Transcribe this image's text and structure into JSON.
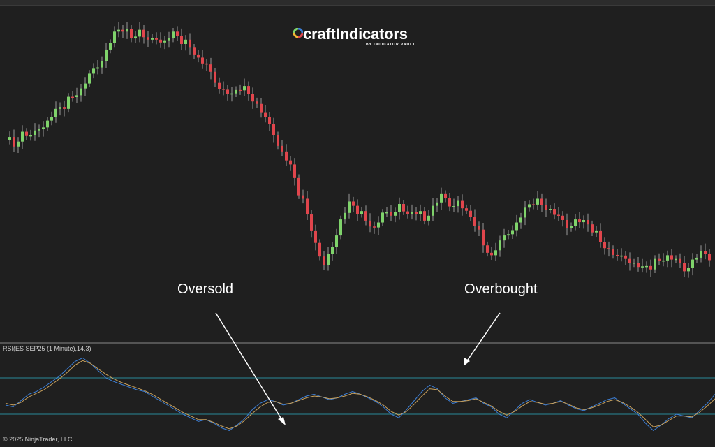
{
  "brand": {
    "name": "craftIndicators",
    "tagline": "BY INDICATOR VAULT"
  },
  "annotations": {
    "oversold": "Oversold",
    "overbought": "Overbought"
  },
  "rsi_panel": {
    "label": "RSI(ES SEP25 (1 Minute),14,3)"
  },
  "footer": {
    "copyright": "© 2025 NinjaTrader, LLC"
  },
  "colors": {
    "background": "#1f1f1f",
    "bull_candle": "#7fd36b",
    "bear_candle": "#e0454c",
    "wick": "#9a9a9a",
    "rsi_line": "#3d7fd6",
    "rsi_signal": "#c9a15c",
    "level_line": "#2a8a9a",
    "annotation": "#ffffff"
  },
  "chart_data": [
    {
      "type": "candlestick",
      "close": [
        0.65,
        0.62,
        0.66,
        0.64,
        0.68,
        0.7,
        0.73,
        0.75,
        0.78,
        0.8,
        0.84,
        0.88,
        0.93,
        0.98,
        1.0,
        0.97,
        0.99,
        0.95,
        0.97,
        0.96,
        0.98,
        0.96,
        0.94,
        0.9,
        0.87,
        0.83,
        0.8,
        0.78,
        0.81,
        0.79,
        0.75,
        0.7,
        0.66,
        0.6,
        0.55,
        0.47,
        0.4,
        0.3,
        0.22,
        0.3,
        0.38,
        0.43,
        0.41,
        0.38,
        0.35,
        0.39,
        0.4,
        0.43,
        0.39,
        0.41,
        0.38,
        0.42,
        0.45,
        0.43,
        0.44,
        0.4,
        0.37,
        0.3,
        0.26,
        0.3,
        0.34,
        0.37,
        0.41,
        0.44,
        0.43,
        0.41,
        0.38,
        0.36,
        0.38,
        0.37,
        0.35,
        0.31,
        0.28,
        0.25,
        0.26,
        0.24,
        0.22,
        0.23,
        0.25,
        0.26,
        0.24,
        0.22,
        0.25,
        0.27,
        0.26,
        0.25,
        0.2,
        0.14,
        0.1,
        0.12,
        0.14,
        0.16,
        0.19
      ],
      "min_price": 0.05,
      "max_price": 1.0
    },
    {
      "type": "line",
      "title": "RSI(ES SEP25 (1 Minute),14,3)",
      "series": [
        {
          "values": [
            40,
            38,
            45,
            52,
            55,
            60,
            66,
            72,
            80,
            88,
            92,
            86,
            78,
            70,
            66,
            63,
            60,
            57,
            55,
            50,
            45,
            40,
            35,
            30,
            26,
            22,
            24,
            20,
            15,
            12,
            18,
            25,
            35,
            42,
            46,
            44,
            40,
            42,
            46,
            50,
            52,
            49,
            46,
            48,
            52,
            55,
            52,
            48,
            44,
            38,
            30,
            26,
            35,
            45,
            55,
            62,
            58,
            48,
            42,
            44,
            46,
            48,
            42,
            38,
            30,
            26,
            34,
            42,
            46,
            43,
            40,
            42,
            45,
            40,
            36,
            34,
            38,
            42,
            46,
            48,
            42,
            36,
            30,
            20,
            12,
            18,
            25,
            30,
            28,
            26,
            34,
            42,
            52
          ]
        },
        {
          "values": [
            42,
            40,
            43,
            49,
            53,
            57,
            63,
            69,
            76,
            84,
            89,
            86,
            80,
            74,
            69,
            65,
            62,
            59,
            56,
            52,
            47,
            42,
            37,
            32,
            28,
            24,
            24,
            21,
            17,
            14,
            17,
            23,
            31,
            38,
            43,
            44,
            41,
            42,
            45,
            48,
            50,
            49,
            47,
            48,
            50,
            53,
            52,
            49,
            45,
            40,
            33,
            29,
            33,
            41,
            50,
            58,
            57,
            50,
            44,
            44,
            45,
            47,
            43,
            39,
            33,
            29,
            33,
            39,
            44,
            43,
            41,
            42,
            44,
            41,
            37,
            35,
            37,
            40,
            44,
            46,
            43,
            38,
            32,
            24,
            16,
            18,
            23,
            28,
            28,
            27,
            32,
            39,
            47
          ]
        }
      ],
      "ylim": [
        0,
        100
      ],
      "levels": [
        70,
        30
      ]
    }
  ]
}
